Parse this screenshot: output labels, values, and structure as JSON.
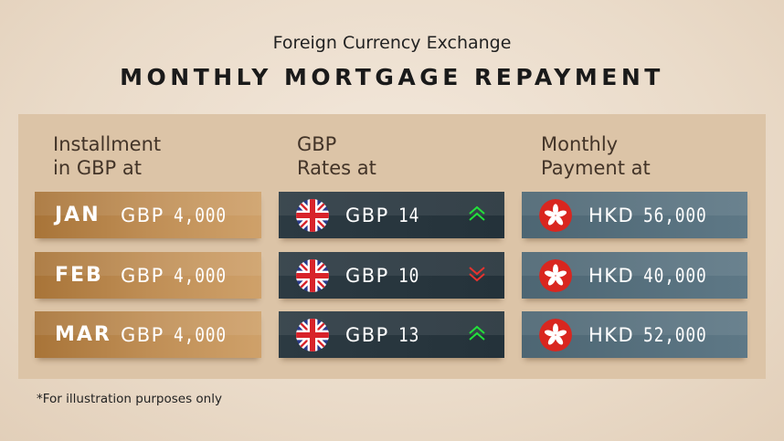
{
  "header": {
    "subtitle": "Foreign Currency Exchange",
    "title": "MONTHLY MORTGAGE REPAYMENT"
  },
  "columns": [
    {
      "line1": "Installment",
      "line2": "in GBP at"
    },
    {
      "line1": "GBP",
      "line2": "Rates at"
    },
    {
      "line1": "Monthly",
      "line2": "Payment at"
    }
  ],
  "rows": [
    {
      "month": "JAN",
      "installment_cur": "GBP",
      "installment": "4,000",
      "rate_cur": "GBP",
      "rate": "14",
      "trend": "up",
      "payment_cur": "HKD",
      "payment": "56,000"
    },
    {
      "month": "FEB",
      "installment_cur": "GBP",
      "installment": "4,000",
      "rate_cur": "GBP",
      "rate": "10",
      "trend": "down",
      "payment_cur": "HKD",
      "payment": "40,000"
    },
    {
      "month": "MAR",
      "installment_cur": "GBP",
      "installment": "4,000",
      "rate_cur": "GBP",
      "rate": "13",
      "trend": "up",
      "payment_cur": "HKD",
      "payment": "52,000"
    }
  ],
  "colors": {
    "up": "#22e03a",
    "down": "#e8322e",
    "installment": "#bf8e55",
    "rate": "#28363e",
    "payment": "#56707d"
  },
  "icons": {
    "rate_flag": "uk-flag-icon",
    "payment_flag": "hong-kong-flag-icon",
    "up": "double-chevron-up-icon",
    "down": "double-chevron-down-icon"
  },
  "footnote": "*For illustration purposes only"
}
